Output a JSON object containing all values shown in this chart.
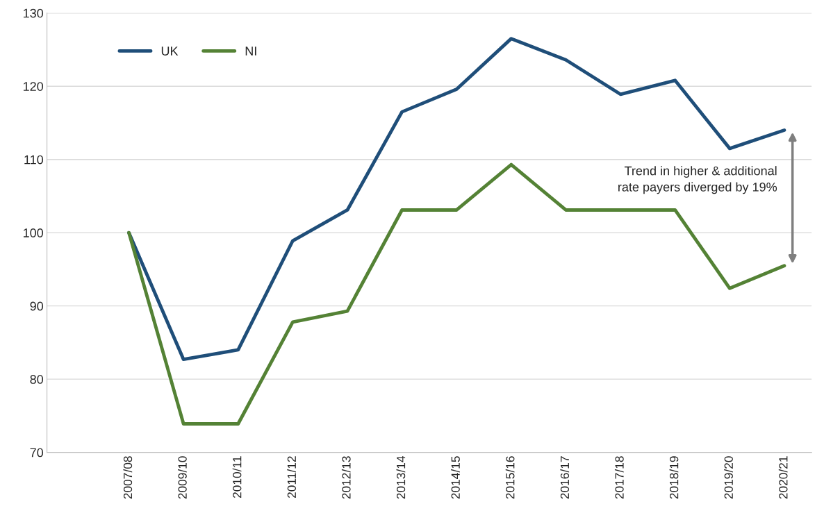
{
  "chart_data": {
    "type": "line",
    "categories": [
      null,
      "2007/08",
      "2009/10",
      "2010/11",
      "2011/12",
      "2012/13",
      "2013/14",
      "2014/15",
      "2015/16",
      "2016/17",
      "2017/18",
      "2018/19",
      "2019/20",
      "2020/21"
    ],
    "series": [
      {
        "name": "UK",
        "color": "#1f4e79",
        "values": [
          null,
          100,
          82.7,
          84.0,
          98.9,
          103.1,
          116.5,
          119.6,
          126.5,
          123.6,
          118.9,
          120.8,
          111.5,
          114.0
        ]
      },
      {
        "name": "NI",
        "color": "#548235",
        "values": [
          null,
          100,
          73.9,
          73.9,
          87.8,
          89.3,
          103.1,
          103.1,
          109.3,
          103.1,
          103.1,
          103.1,
          92.4,
          95.5
        ]
      }
    ],
    "ylim": [
      70,
      130
    ],
    "yticks": [
      70,
      80,
      90,
      100,
      110,
      120,
      130
    ],
    "grid": "y",
    "legend": "top left",
    "marker": "none",
    "line_style": "solid",
    "annotations": [
      "Trend in higher & additional\nrate payers diverged by 19%"
    ]
  }
}
